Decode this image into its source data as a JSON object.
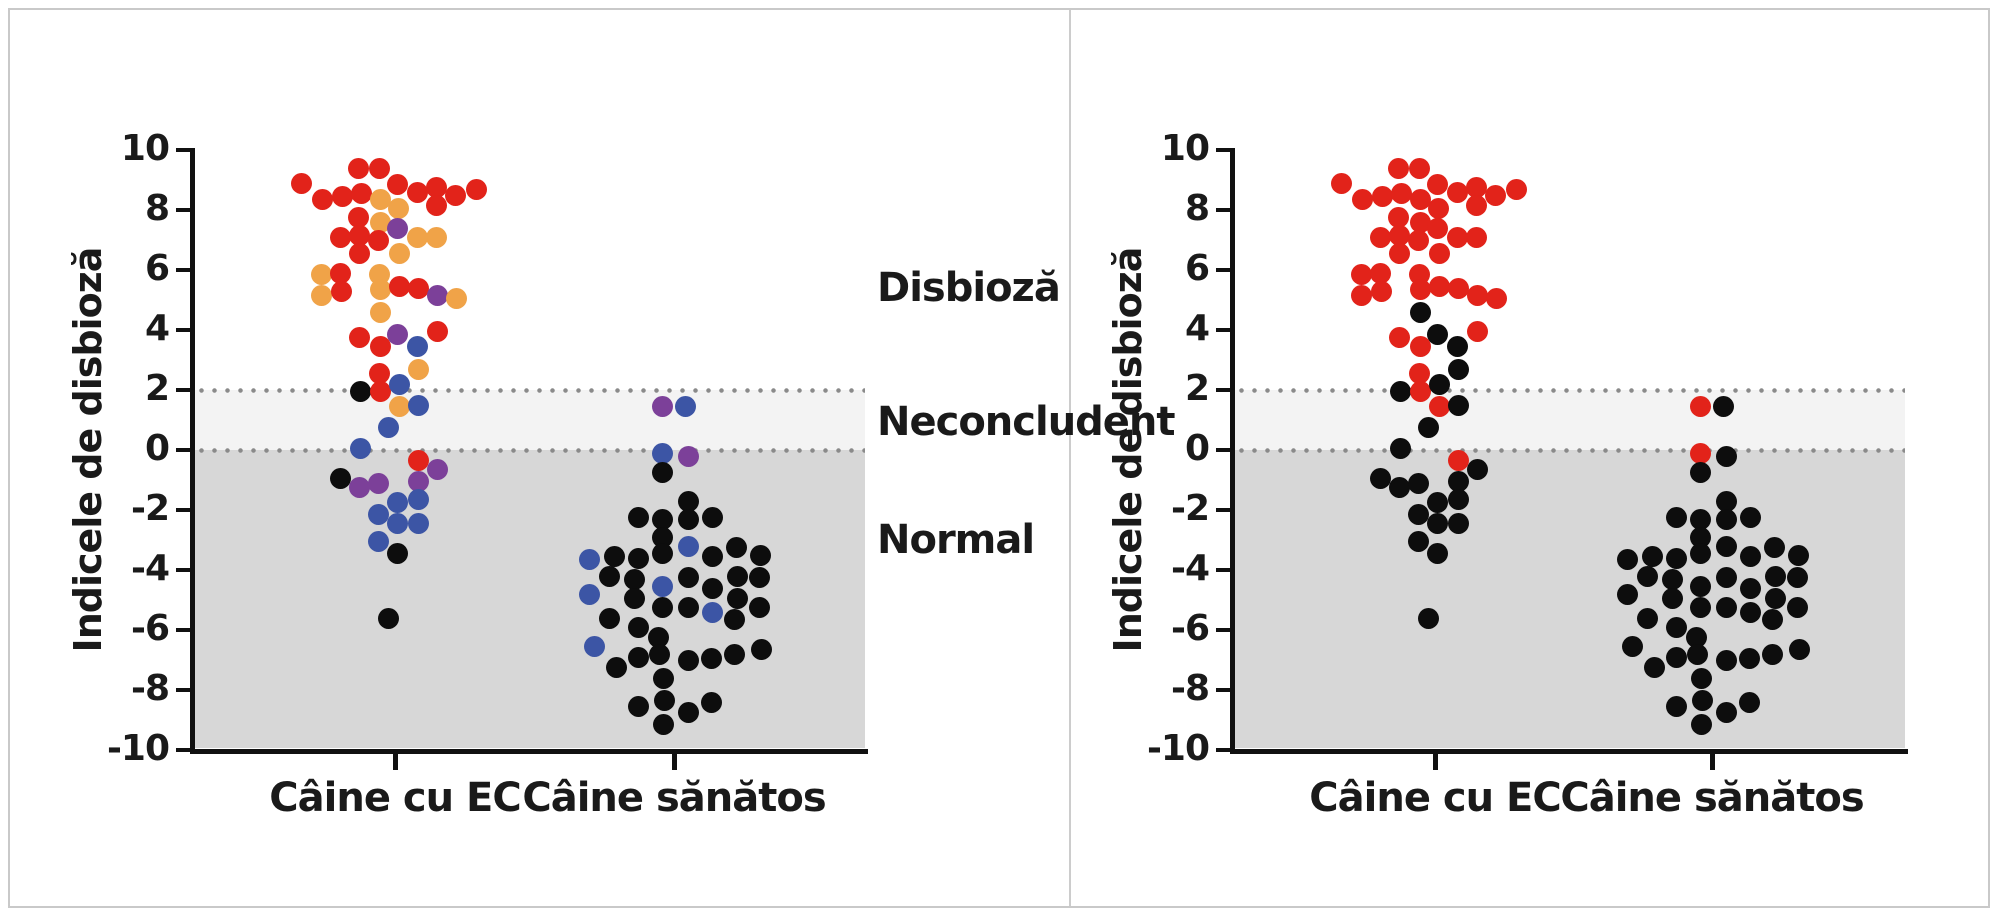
{
  "chart_data": {
    "type": "scatter",
    "subtype": "beeswarm-dot-plot",
    "panel_count": 2,
    "ylabel": "Indicele de disbioză",
    "ylim": [
      -10,
      10
    ],
    "yticks": [
      10,
      8,
      6,
      4,
      2,
      0,
      -2,
      -4,
      -6,
      -8,
      -10
    ],
    "grid": "off",
    "reference_lines": [
      {
        "y": 2,
        "style": "dotted"
      },
      {
        "y": 0,
        "style": "dotted"
      }
    ],
    "zones": [
      {
        "label": "Disbioză",
        "range": [
          2,
          10
        ],
        "background": "#ffffff"
      },
      {
        "label": "Neconcludent",
        "range": [
          0,
          2
        ],
        "background": "#f3f3f3"
      },
      {
        "label": "Normal",
        "range": [
          -10,
          0
        ],
        "background": "#d7d7d7"
      }
    ],
    "categories": [
      "Câine cu EC",
      "Câine sănătos"
    ],
    "panels": [
      {
        "name": "left-panel",
        "color_field": 2
      },
      {
        "name": "right-panel",
        "color_field": 3
      }
    ],
    "point_format": [
      "value",
      "dx_px",
      "color_left_panel",
      "color_right_panel"
    ],
    "points_caine_cu_ec": [
      [
        9.4,
        -37,
        "r",
        "r"
      ],
      [
        9.4,
        -16,
        "r",
        "r"
      ],
      [
        8.9,
        -94,
        "r",
        "r"
      ],
      [
        8.85,
        2,
        "r",
        "r"
      ],
      [
        8.6,
        22,
        "r",
        "r"
      ],
      [
        8.75,
        41,
        "r",
        "r"
      ],
      [
        8.5,
        60,
        "r",
        "r"
      ],
      [
        8.7,
        81,
        "r",
        "r"
      ],
      [
        8.35,
        -73,
        "r",
        "r"
      ],
      [
        8.45,
        -53,
        "r",
        "r"
      ],
      [
        8.55,
        -34,
        "r",
        "r"
      ],
      [
        8.35,
        -15,
        "o",
        "r"
      ],
      [
        8.15,
        41,
        "r",
        "r"
      ],
      [
        8.05,
        3,
        "o",
        "r"
      ],
      [
        7.75,
        -37,
        "r",
        "r"
      ],
      [
        7.6,
        -15,
        "o",
        "r"
      ],
      [
        7.4,
        2,
        "p",
        "r"
      ],
      [
        7.1,
        -55,
        "r",
        "r"
      ],
      [
        7.15,
        -36,
        "r",
        "r"
      ],
      [
        7.0,
        -17,
        "r",
        "r"
      ],
      [
        7.1,
        22,
        "o",
        "r"
      ],
      [
        7.1,
        41,
        "o",
        "r"
      ],
      [
        6.55,
        -36,
        "r",
        "r"
      ],
      [
        6.55,
        4,
        "o",
        "r"
      ],
      [
        5.85,
        -74,
        "o",
        "r"
      ],
      [
        5.9,
        -55,
        "r",
        "r"
      ],
      [
        5.85,
        -16,
        "o",
        "r"
      ],
      [
        5.15,
        -74,
        "o",
        "r"
      ],
      [
        5.3,
        -54,
        "r",
        "r"
      ],
      [
        5.35,
        -15,
        "o",
        "r"
      ],
      [
        5.45,
        4,
        "r",
        "r"
      ],
      [
        5.4,
        23,
        "r",
        "r"
      ],
      [
        5.15,
        42,
        "p",
        "r"
      ],
      [
        5.05,
        61,
        "o",
        "r"
      ],
      [
        4.6,
        -15,
        "o",
        "k"
      ],
      [
        3.75,
        -36,
        "r",
        "r"
      ],
      [
        3.85,
        2,
        "p",
        "k"
      ],
      [
        3.95,
        42,
        "r",
        "r"
      ],
      [
        3.45,
        -15,
        "r",
        "r"
      ],
      [
        3.45,
        22,
        "b",
        "k"
      ],
      [
        2.55,
        -16,
        "r",
        "r"
      ],
      [
        2.7,
        23,
        "o",
        "k"
      ],
      [
        1.95,
        -35,
        "k",
        "k"
      ],
      [
        1.95,
        -15,
        "r",
        "r"
      ],
      [
        2.2,
        4,
        "b",
        "k"
      ],
      [
        1.45,
        4,
        "o",
        "r"
      ],
      [
        1.5,
        23,
        "b",
        "k"
      ],
      [
        0.75,
        -7,
        "b",
        "k"
      ],
      [
        0.05,
        -35,
        "b",
        "k"
      ],
      [
        -0.35,
        23,
        "r",
        "r"
      ],
      [
        -0.65,
        42,
        "p",
        "k"
      ],
      [
        -0.95,
        -55,
        "k",
        "k"
      ],
      [
        -1.25,
        -36,
        "p",
        "k"
      ],
      [
        -1.1,
        -17,
        "p",
        "k"
      ],
      [
        -1.05,
        23,
        "p",
        "k"
      ],
      [
        -1.75,
        2,
        "b",
        "k"
      ],
      [
        -1.65,
        23,
        "b",
        "k"
      ],
      [
        -2.15,
        -17,
        "b",
        "k"
      ],
      [
        -2.45,
        2,
        "b",
        "k"
      ],
      [
        -2.45,
        23,
        "b",
        "k"
      ],
      [
        -3.05,
        -17,
        "b",
        "k"
      ],
      [
        -3.45,
        2,
        "k",
        "k"
      ],
      [
        -5.6,
        -7,
        "k",
        "k"
      ]
    ],
    "points_caine_sanatos": [
      [
        1.45,
        -12,
        "p",
        "r"
      ],
      [
        1.45,
        11,
        "b",
        "k"
      ],
      [
        -0.1,
        -12,
        "b",
        "r"
      ],
      [
        -0.2,
        14,
        "p",
        "k"
      ],
      [
        -0.75,
        -12,
        "k",
        "k"
      ],
      [
        -1.7,
        14,
        "k",
        "k"
      ],
      [
        -2.25,
        -36,
        "k",
        "k"
      ],
      [
        -2.3,
        -12,
        "k",
        "k"
      ],
      [
        -2.3,
        14,
        "k",
        "k"
      ],
      [
        -2.25,
        38,
        "k",
        "k"
      ],
      [
        -2.9,
        -12,
        "k",
        "k"
      ],
      [
        -3.2,
        14,
        "b",
        "k"
      ],
      [
        -3.25,
        62,
        "k",
        "k"
      ],
      [
        -3.65,
        -85,
        "b",
        "k"
      ],
      [
        -3.55,
        -60,
        "k",
        "k"
      ],
      [
        -3.6,
        -36,
        "k",
        "k"
      ],
      [
        -3.45,
        -12,
        "k",
        "k"
      ],
      [
        -3.55,
        38,
        "k",
        "k"
      ],
      [
        -3.5,
        86,
        "k",
        "k"
      ],
      [
        -4.2,
        -65,
        "k",
        "k"
      ],
      [
        -4.3,
        -40,
        "k",
        "k"
      ],
      [
        -4.55,
        -12,
        "b",
        "k"
      ],
      [
        -4.25,
        14,
        "k",
        "k"
      ],
      [
        -4.6,
        38,
        "k",
        "k"
      ],
      [
        -4.2,
        63,
        "k",
        "k"
      ],
      [
        -4.25,
        85,
        "k",
        "k"
      ],
      [
        -4.8,
        -85,
        "b",
        "k"
      ],
      [
        -4.95,
        -40,
        "k",
        "k"
      ],
      [
        -5.25,
        -12,
        "k",
        "k"
      ],
      [
        -5.25,
        14,
        "k",
        "k"
      ],
      [
        -5.4,
        38,
        "b",
        "k"
      ],
      [
        -4.95,
        63,
        "k",
        "k"
      ],
      [
        -5.25,
        85,
        "k",
        "k"
      ],
      [
        -5.6,
        -65,
        "k",
        "k"
      ],
      [
        -5.9,
        -36,
        "k",
        "k"
      ],
      [
        -5.65,
        60,
        "k",
        "k"
      ],
      [
        -6.25,
        -16,
        "k",
        "k"
      ],
      [
        -6.55,
        -80,
        "b",
        "k"
      ],
      [
        -6.9,
        -36,
        "k",
        "k"
      ],
      [
        -6.8,
        -15,
        "k",
        "k"
      ],
      [
        -7.0,
        14,
        "k",
        "k"
      ],
      [
        -6.95,
        37,
        "k",
        "k"
      ],
      [
        -6.8,
        60,
        "k",
        "k"
      ],
      [
        -6.65,
        87,
        "k",
        "k"
      ],
      [
        -7.25,
        -58,
        "k",
        "k"
      ],
      [
        -7.6,
        -11,
        "k",
        "k"
      ],
      [
        -8.35,
        -10,
        "k",
        "k"
      ],
      [
        -8.55,
        -36,
        "k",
        "k"
      ],
      [
        -8.75,
        14,
        "k",
        "k"
      ],
      [
        -8.4,
        37,
        "k",
        "k"
      ],
      [
        -9.15,
        -11,
        "k",
        "k"
      ]
    ]
  },
  "colors": {
    "r": "#e2231a",
    "o": "#f0a348",
    "p": "#7c4099",
    "b": "#3c55a5",
    "k": "#0d0d0d"
  },
  "labels": {
    "y_axis_title": "Indicele de disbioză",
    "group_1": "Câine cu EC",
    "group_2": "Câine sănătos",
    "zone_dysbiosis": "Disbioză",
    "zone_inconclusive": "Neconcludent",
    "zone_normal": "Normal"
  }
}
